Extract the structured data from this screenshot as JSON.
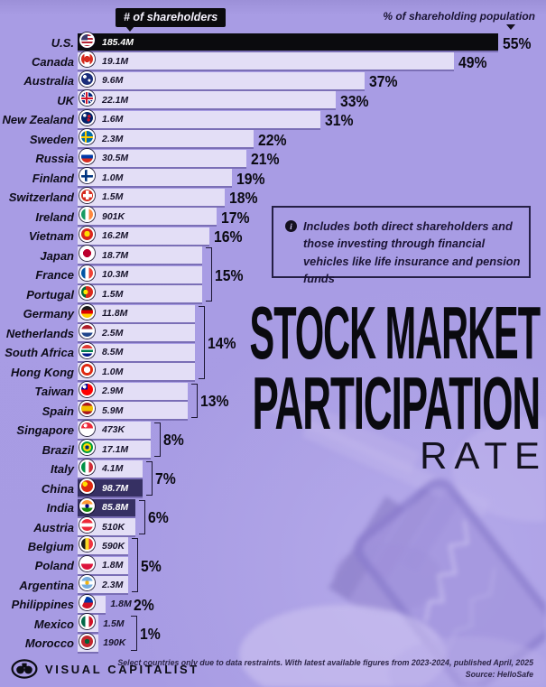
{
  "header": {
    "shareholders_label": "# of shareholders",
    "population_label": "% of shareholding population"
  },
  "chart_data": {
    "type": "bar",
    "orientation": "horizontal",
    "title": "Stock Market Participation Rate",
    "value_axis_label": "% of shareholding population",
    "secondary_value_label": "# of shareholders",
    "rows": [
      {
        "country": "U.S.",
        "flag": "us",
        "shareholders": "185.4M",
        "percent": 55,
        "bar_style": "black"
      },
      {
        "country": "Canada",
        "flag": "ca",
        "shareholders": "19.1M",
        "percent": 49,
        "bar_style": "light"
      },
      {
        "country": "Australia",
        "flag": "au",
        "shareholders": "9.6M",
        "percent": 37,
        "bar_style": "light"
      },
      {
        "country": "UK",
        "flag": "gb",
        "shareholders": "22.1M",
        "percent": 33,
        "bar_style": "light"
      },
      {
        "country": "New Zealand",
        "flag": "nz",
        "shareholders": "1.6M",
        "percent": 31,
        "bar_style": "light"
      },
      {
        "country": "Sweden",
        "flag": "se",
        "shareholders": "2.3M",
        "percent": 22,
        "bar_style": "light"
      },
      {
        "country": "Russia",
        "flag": "ru",
        "shareholders": "30.5M",
        "percent": 21,
        "bar_style": "light"
      },
      {
        "country": "Finland",
        "flag": "fi",
        "shareholders": "1.0M",
        "percent": 19,
        "bar_style": "light"
      },
      {
        "country": "Switzerland",
        "flag": "ch",
        "shareholders": "1.5M",
        "percent": 18,
        "bar_style": "light"
      },
      {
        "country": "Ireland",
        "flag": "ie",
        "shareholders": "901K",
        "percent": 17,
        "bar_style": "light"
      },
      {
        "country": "Vietnam",
        "flag": "vn",
        "shareholders": "16.2M",
        "percent": 16,
        "bar_style": "light"
      },
      {
        "country": "Japan",
        "flag": "jp",
        "shareholders": "18.7M",
        "percent": 15,
        "bar_style": "light"
      },
      {
        "country": "France",
        "flag": "fr",
        "shareholders": "10.3M",
        "percent": 15,
        "bar_style": "light"
      },
      {
        "country": "Portugal",
        "flag": "pt",
        "shareholders": "1.5M",
        "percent": 15,
        "bar_style": "light"
      },
      {
        "country": "Germany",
        "flag": "de",
        "shareholders": "11.8M",
        "percent": 14,
        "bar_style": "light"
      },
      {
        "country": "Netherlands",
        "flag": "nl",
        "shareholders": "2.5M",
        "percent": 14,
        "bar_style": "light"
      },
      {
        "country": "South Africa",
        "flag": "za",
        "shareholders": "8.5M",
        "percent": 14,
        "bar_style": "light"
      },
      {
        "country": "Hong Kong",
        "flag": "hk",
        "shareholders": "1.0M",
        "percent": 14,
        "bar_style": "light"
      },
      {
        "country": "Taiwan",
        "flag": "tw",
        "shareholders": "2.9M",
        "percent": 13,
        "bar_style": "light"
      },
      {
        "country": "Spain",
        "flag": "es",
        "shareholders": "5.9M",
        "percent": 13,
        "bar_style": "light"
      },
      {
        "country": "Singapore",
        "flag": "sg",
        "shareholders": "473K",
        "percent": 8,
        "bar_style": "light"
      },
      {
        "country": "Brazil",
        "flag": "br",
        "shareholders": "17.1M",
        "percent": 8,
        "bar_style": "light"
      },
      {
        "country": "Italy",
        "flag": "it",
        "shareholders": "4.1M",
        "percent": 7,
        "bar_style": "light"
      },
      {
        "country": "China",
        "flag": "cn",
        "shareholders": "98.7M",
        "percent": 7,
        "bar_style": "navy"
      },
      {
        "country": "India",
        "flag": "in",
        "shareholders": "85.8M",
        "percent": 6,
        "bar_style": "navy"
      },
      {
        "country": "Austria",
        "flag": "at",
        "shareholders": "510K",
        "percent": 6,
        "bar_style": "light"
      },
      {
        "country": "Belgium",
        "flag": "be",
        "shareholders": "590K",
        "percent": 5,
        "bar_style": "light"
      },
      {
        "country": "Poland",
        "flag": "pl",
        "shareholders": "1.8M",
        "percent": 5,
        "bar_style": "light"
      },
      {
        "country": "Argentina",
        "flag": "ar",
        "shareholders": "2.3M",
        "percent": 5,
        "bar_style": "light"
      },
      {
        "country": "Philippines",
        "flag": "ph",
        "shareholders": "1.8M",
        "percent": 2,
        "bar_style": "light"
      },
      {
        "country": "Mexico",
        "flag": "mx",
        "shareholders": "1.5M",
        "percent": 1,
        "bar_style": "light"
      },
      {
        "country": "Morocco",
        "flag": "ma",
        "shareholders": "190K",
        "percent": 1,
        "bar_style": "light"
      }
    ],
    "colors": {
      "background": "#a79be3",
      "bar_light": "#e3def6",
      "bar_black": "#0b0b0e",
      "bar_navy": "#363063"
    }
  },
  "note": {
    "icon": "info-icon",
    "icon_glyph": "i",
    "text": "Includes both direct shareholders and those investing through financial vehicles like life insurance and pension funds"
  },
  "title": {
    "line1": "STOCK MARKET",
    "line2": "PARTICIPATION",
    "line3": "RATE"
  },
  "footer": {
    "disclaimer": "Select countries only due to data restraints. With latest available figures from 2023-2024, published April, 2025",
    "source": "Source: HelloSafe",
    "brand": "VISUAL CAPITALIST"
  }
}
